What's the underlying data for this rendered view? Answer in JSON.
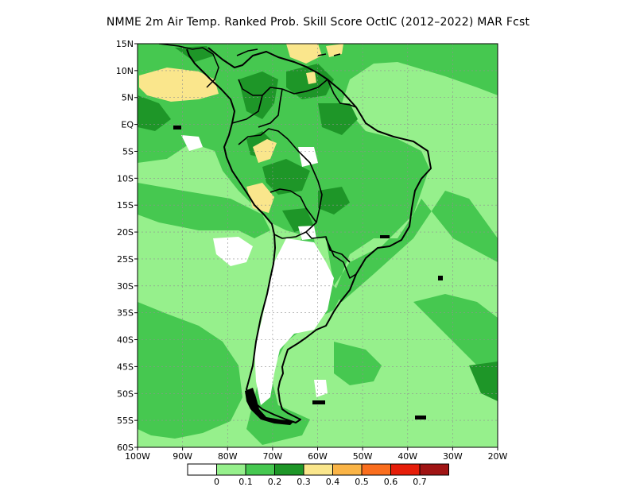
{
  "title": "NMME  2m Air Temp. Ranked Prob. Skill Score OctIC (2012–2022) MAR Fcst",
  "map": {
    "lat_labels": [
      "15N",
      "10N",
      "5N",
      "EQ",
      "5S",
      "10S",
      "15S",
      "20S",
      "25S",
      "30S",
      "35S",
      "40S",
      "45S",
      "50S",
      "55S",
      "60S"
    ],
    "lon_labels": [
      "100W",
      "90W",
      "80W",
      "70W",
      "60W",
      "50W",
      "40W",
      "30W",
      "20W"
    ],
    "grid": true
  },
  "colorbar": {
    "tick_labels": [
      "0",
      "0.1",
      "0.2",
      "0.3",
      "0.4",
      "0.5",
      "0.6",
      "0.7"
    ],
    "colors": [
      "#ffffff",
      "#96f08c",
      "#46c850",
      "#1e9628",
      "#fae68c",
      "#fab446",
      "#fa6e1e",
      "#e61e0a",
      "#a01414"
    ]
  },
  "colors": {
    "ocean": "#96f08c",
    "mid_green": "#46c850",
    "dark_green": "#1e9628",
    "yellow": "#fae68c",
    "white": "#ffffff",
    "coast": "#000000"
  }
}
